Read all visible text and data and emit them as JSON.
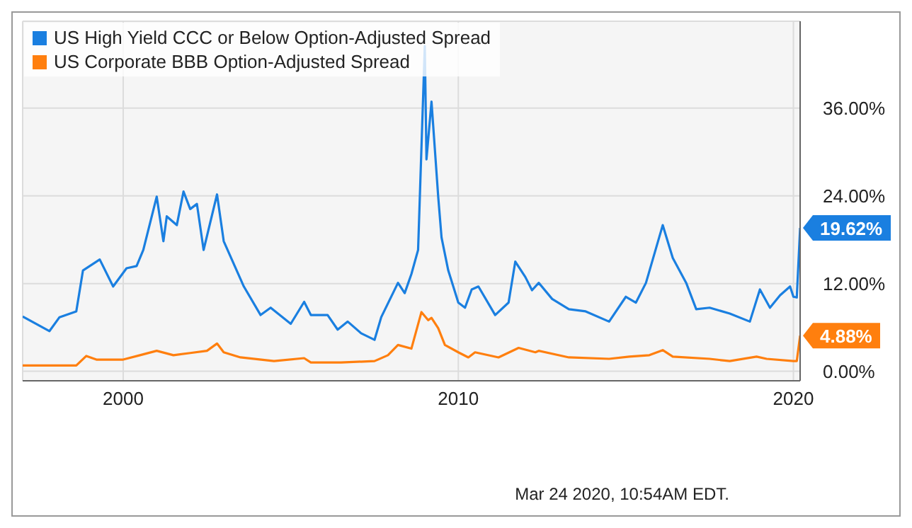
{
  "chart_data": {
    "type": "line",
    "series": [
      {
        "name": "US High Yield CCC or Below Option-Adjusted Spread",
        "color": "#1a7fe0",
        "x": [
          1997.0,
          1997.8,
          1998.1,
          1998.6,
          1998.8,
          1999.3,
          1999.7,
          2000.1,
          2000.4,
          2000.6,
          2001.0,
          2001.2,
          2001.3,
          2001.6,
          2001.8,
          2002.0,
          2002.2,
          2002.4,
          2002.8,
          2003.0,
          2003.6,
          2004.1,
          2004.4,
          2005.0,
          2005.4,
          2005.6,
          2006.1,
          2006.4,
          2006.7,
          2007.1,
          2007.5,
          2007.7,
          2008.2,
          2008.4,
          2008.6,
          2008.8,
          2009.0,
          2009.05,
          2009.2,
          2009.4,
          2009.5,
          2009.7,
          2010.0,
          2010.2,
          2010.4,
          2010.6,
          2011.1,
          2011.5,
          2011.7,
          2012.0,
          2012.2,
          2012.4,
          2012.8,
          2013.3,
          2013.8,
          2014.5,
          2015.0,
          2015.3,
          2015.6,
          2016.1,
          2016.4,
          2016.8,
          2017.1,
          2017.5,
          2018.1,
          2018.7,
          2019.0,
          2019.3,
          2019.6,
          2019.9,
          2020.0,
          2020.1,
          2020.2
        ],
        "values": [
          7.5,
          5.5,
          7.4,
          8.2,
          13.8,
          15.3,
          11.6,
          14.1,
          14.4,
          16.6,
          23.9,
          17.8,
          21.2,
          20.0,
          24.6,
          22.2,
          22.9,
          16.6,
          24.2,
          17.8,
          11.6,
          7.7,
          8.7,
          6.5,
          9.5,
          7.7,
          7.7,
          5.7,
          6.8,
          5.2,
          4.3,
          7.4,
          12.1,
          10.7,
          13.3,
          16.6,
          44.5,
          29.0,
          36.9,
          23.9,
          18.3,
          13.8,
          9.4,
          8.7,
          11.2,
          11.6,
          7.7,
          9.4,
          15.0,
          12.9,
          11.1,
          12.1,
          9.9,
          8.5,
          8.2,
          6.8,
          10.2,
          9.4,
          12.1,
          20.0,
          15.5,
          12.1,
          8.5,
          8.7,
          7.9,
          6.8,
          11.2,
          8.7,
          10.4,
          11.6,
          10.2,
          10.1,
          19.62
        ],
        "value_labels": [
          null,
          null,
          null,
          null,
          null,
          null,
          null,
          null,
          null,
          null,
          null,
          null,
          null,
          null,
          null,
          null,
          null,
          null,
          null,
          null,
          null,
          null,
          null,
          null,
          null,
          null,
          null,
          null,
          null,
          null,
          null,
          null,
          null,
          null,
          null,
          null,
          null,
          null,
          null,
          null,
          null,
          null,
          null,
          null,
          null,
          null,
          null,
          null,
          null,
          null,
          null,
          null,
          null,
          null,
          null,
          null,
          null,
          null,
          null,
          null,
          null,
          null,
          null,
          null,
          null,
          null,
          null,
          null,
          null,
          null,
          null,
          null,
          "19.62%"
        ]
      },
      {
        "name": "US Corporate BBB Option-Adjusted Spread",
        "color": "#ff7f0e",
        "x": [
          1997.0,
          1998.6,
          1998.9,
          1999.2,
          2000.0,
          2000.5,
          2001.0,
          2001.5,
          2002.0,
          2002.5,
          2002.8,
          2003.0,
          2003.5,
          2004.5,
          2005.4,
          2005.6,
          2006.5,
          2007.5,
          2007.9,
          2008.2,
          2008.6,
          2008.9,
          2009.1,
          2009.2,
          2009.4,
          2009.6,
          2010.0,
          2010.3,
          2010.5,
          2011.2,
          2011.8,
          2012.3,
          2012.4,
          2013.3,
          2014.5,
          2015.1,
          2015.7,
          2016.1,
          2016.4,
          2017.5,
          2018.1,
          2018.9,
          2019.2,
          2020.0,
          2020.1,
          2020.2
        ],
        "values": [
          0.8,
          0.8,
          2.1,
          1.6,
          1.6,
          2.2,
          2.8,
          2.2,
          2.5,
          2.8,
          3.8,
          2.6,
          1.9,
          1.4,
          1.8,
          1.2,
          1.2,
          1.4,
          2.2,
          3.6,
          3.1,
          8.1,
          7.0,
          7.3,
          5.9,
          3.6,
          2.6,
          1.9,
          2.6,
          1.9,
          3.2,
          2.6,
          2.8,
          1.9,
          1.7,
          2.0,
          2.2,
          2.9,
          2.0,
          1.7,
          1.4,
          2.0,
          1.7,
          1.4,
          1.4,
          4.88
        ],
        "value_labels": [
          null,
          null,
          null,
          null,
          null,
          null,
          null,
          null,
          null,
          null,
          null,
          null,
          null,
          null,
          null,
          null,
          null,
          null,
          null,
          null,
          null,
          null,
          null,
          null,
          null,
          null,
          null,
          null,
          null,
          null,
          null,
          null,
          null,
          null,
          null,
          null,
          null,
          null,
          null,
          null,
          null,
          null,
          null,
          null,
          null,
          "4.88%"
        ]
      }
    ],
    "xlim": [
      1997.0,
      2020.2
    ],
    "xticks": [
      2000,
      2010,
      2020
    ],
    "ylim": [
      -1.3,
      47.9
    ],
    "yticks": [
      {
        "value": 0,
        "label": "0.00%"
      },
      {
        "value": 12,
        "label": "12.00%"
      },
      {
        "value": 24,
        "label": "24.00%"
      },
      {
        "value": 36,
        "label": "36.00%"
      }
    ],
    "grid": true,
    "legend": "top left",
    "marker": "none",
    "line_style": "solid",
    "annotations": [
      "Mar 24 2020, 10:54AM EDT."
    ]
  }
}
